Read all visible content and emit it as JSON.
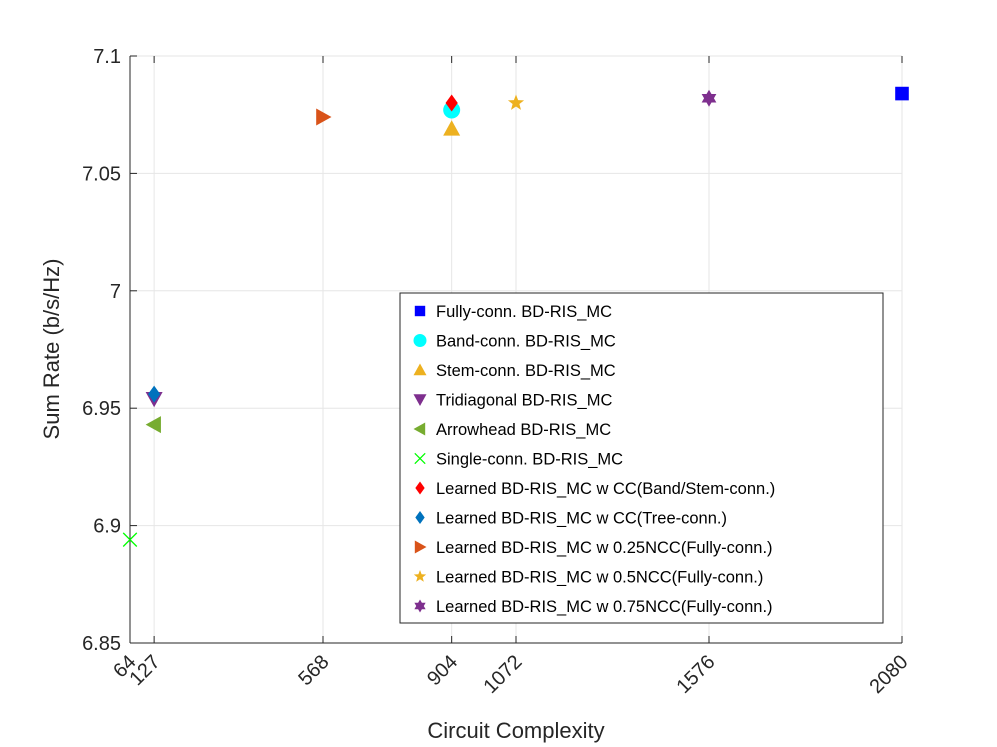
{
  "chart_data": {
    "type": "scatter",
    "title": "",
    "xlabel": "Circuit Complexity",
    "ylabel": "Sum Rate (b/s/Hz)",
    "xlim": [
      64,
      2080
    ],
    "ylim": [
      6.85,
      7.1
    ],
    "grid": true,
    "legend_position": "lower-right",
    "xticks": [
      64,
      127,
      568,
      904,
      1072,
      1576,
      2080
    ],
    "xtick_labels": [
      "64",
      "127",
      "568",
      "904",
      "1072",
      "1576",
      "2080"
    ],
    "yticks": [
      6.85,
      6.9,
      6.95,
      7.0,
      7.05,
      7.1
    ],
    "ytick_labels": [
      "6.85",
      "6.9",
      "6.95",
      "7",
      "7.05",
      "7.1"
    ],
    "series": [
      {
        "name": "Fully-conn. BD-RIS_MC",
        "marker": "square",
        "color": "#0000ff",
        "x": 2080,
        "y": 7.084
      },
      {
        "name": "Band-conn. BD-RIS_MC",
        "marker": "circle",
        "color": "#00ffff",
        "x": 904,
        "y": 7.077
      },
      {
        "name": "Stem-conn. BD-RIS_MC",
        "marker": "triangle-up",
        "color": "#edb120",
        "x": 904,
        "y": 7.069
      },
      {
        "name": "Tridiagonal BD-RIS_MC",
        "marker": "triangle-down",
        "color": "#7e2f8e",
        "x": 127,
        "y": 6.954
      },
      {
        "name": "Arrowhead BD-RIS_MC",
        "marker": "triangle-left",
        "color": "#77ac30",
        "x": 127,
        "y": 6.943
      },
      {
        "name": "Single-conn. BD-RIS_MC",
        "marker": "x",
        "color": "#00ff00",
        "x": 64,
        "y": 6.894
      },
      {
        "name": "Learned BD-RIS_MC w CC(Band/Stem-conn.)",
        "marker": "diamond",
        "color": "#ff0000",
        "x": 904,
        "y": 7.08
      },
      {
        "name": "Learned BD-RIS_MC w CC(Tree-conn.)",
        "marker": "diamond",
        "color": "#0072bd",
        "x": 127,
        "y": 6.956
      },
      {
        "name": "Learned BD-RIS_MC w 0.25NCC(Fully-conn.)",
        "marker": "triangle-right",
        "color": "#d95319",
        "x": 568,
        "y": 7.074
      },
      {
        "name": "Learned BD-RIS_MC w 0.5NCC(Fully-conn.)",
        "marker": "pentagram",
        "color": "#edb120",
        "x": 1072,
        "y": 7.08
      },
      {
        "name": "Learned BD-RIS_MC w 0.75NCC(Fully-conn.)",
        "marker": "hexagram",
        "color": "#7e2f8e",
        "x": 1576,
        "y": 7.082
      }
    ]
  }
}
